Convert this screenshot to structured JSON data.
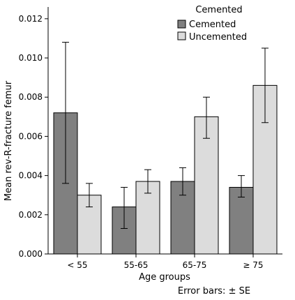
{
  "chart_data": {
    "type": "bar",
    "ylabel": "Mean rev-R-fracture femur",
    "xlabel": "Age groups",
    "footnote": "Error bars: ± SE",
    "legend": {
      "title": "Cemented",
      "position": "top-right"
    },
    "categories": [
      "< 55",
      "55-65",
      "65-75",
      "≥ 75"
    ],
    "series": [
      {
        "name": "Cemented",
        "color": "#808080",
        "values": [
          0.0072,
          0.0024,
          0.0037,
          0.0034
        ],
        "error_low": [
          0.0036,
          0.0013,
          0.003,
          0.0029
        ],
        "error_high": [
          0.0108,
          0.0034,
          0.0044,
          0.004
        ]
      },
      {
        "name": "Uncemented",
        "color": "#dcdcdc",
        "values": [
          0.003,
          0.0037,
          0.007,
          0.0086
        ],
        "error_low": [
          0.0024,
          0.0031,
          0.0059,
          0.0067
        ],
        "error_high": [
          0.0036,
          0.0043,
          0.008,
          0.0105
        ]
      }
    ],
    "yticks": [
      "0.000",
      "0.002",
      "0.004",
      "0.006",
      "0.008",
      "0.010",
      "0.012"
    ],
    "ylim": [
      0,
      0.0126
    ],
    "grid": false
  }
}
